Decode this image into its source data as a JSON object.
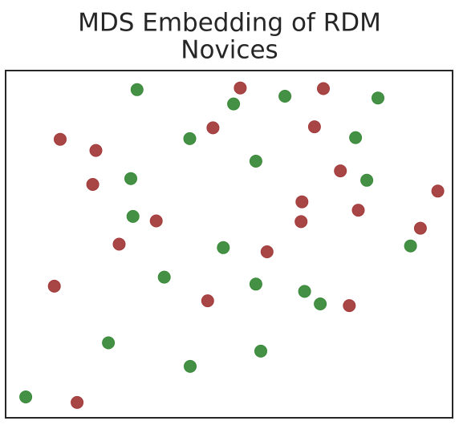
{
  "chart_data": {
    "type": "scatter",
    "title": "MDS Embedding of RDM\nNovices",
    "xlabel": "",
    "ylabel": "",
    "axes_visible": false,
    "grid": false,
    "legend": "none",
    "xlim": [
      0,
      100
    ],
    "ylim": [
      0,
      100
    ],
    "series": [
      {
        "color": "#3a8a3a",
        "points": [
          {
            "x": 29.4,
            "y": 94.5
          },
          {
            "x": 51.0,
            "y": 90.4
          },
          {
            "x": 62.5,
            "y": 92.6
          },
          {
            "x": 83.3,
            "y": 92.1
          },
          {
            "x": 41.2,
            "y": 80.4
          },
          {
            "x": 78.3,
            "y": 80.7
          },
          {
            "x": 56.0,
            "y": 73.9
          },
          {
            "x": 28.0,
            "y": 68.9
          },
          {
            "x": 80.8,
            "y": 68.4
          },
          {
            "x": 28.5,
            "y": 58.0
          },
          {
            "x": 48.7,
            "y": 49.0
          },
          {
            "x": 90.6,
            "y": 49.5
          },
          {
            "x": 35.5,
            "y": 40.5
          },
          {
            "x": 56.0,
            "y": 38.5
          },
          {
            "x": 66.9,
            "y": 36.4
          },
          {
            "x": 70.4,
            "y": 32.8
          },
          {
            "x": 23.0,
            "y": 21.6
          },
          {
            "x": 57.1,
            "y": 19.2
          },
          {
            "x": 41.3,
            "y": 14.8
          },
          {
            "x": 4.5,
            "y": 6.0
          }
        ]
      },
      {
        "color": "#a33b3b",
        "points": [
          {
            "x": 52.5,
            "y": 95.0
          },
          {
            "x": 71.1,
            "y": 94.8
          },
          {
            "x": 46.4,
            "y": 83.5
          },
          {
            "x": 69.1,
            "y": 83.8
          },
          {
            "x": 12.2,
            "y": 80.2
          },
          {
            "x": 20.2,
            "y": 77.0
          },
          {
            "x": 74.9,
            "y": 71.1
          },
          {
            "x": 19.5,
            "y": 67.2
          },
          {
            "x": 96.7,
            "y": 65.3
          },
          {
            "x": 66.3,
            "y": 62.2
          },
          {
            "x": 78.9,
            "y": 59.8
          },
          {
            "x": 66.1,
            "y": 56.5
          },
          {
            "x": 33.7,
            "y": 56.7
          },
          {
            "x": 92.8,
            "y": 54.6
          },
          {
            "x": 25.4,
            "y": 50.0
          },
          {
            "x": 58.5,
            "y": 47.8
          },
          {
            "x": 10.9,
            "y": 37.9
          },
          {
            "x": 45.2,
            "y": 33.7
          },
          {
            "x": 76.9,
            "y": 32.3
          },
          {
            "x": 16.0,
            "y": 4.4
          }
        ]
      }
    ]
  }
}
